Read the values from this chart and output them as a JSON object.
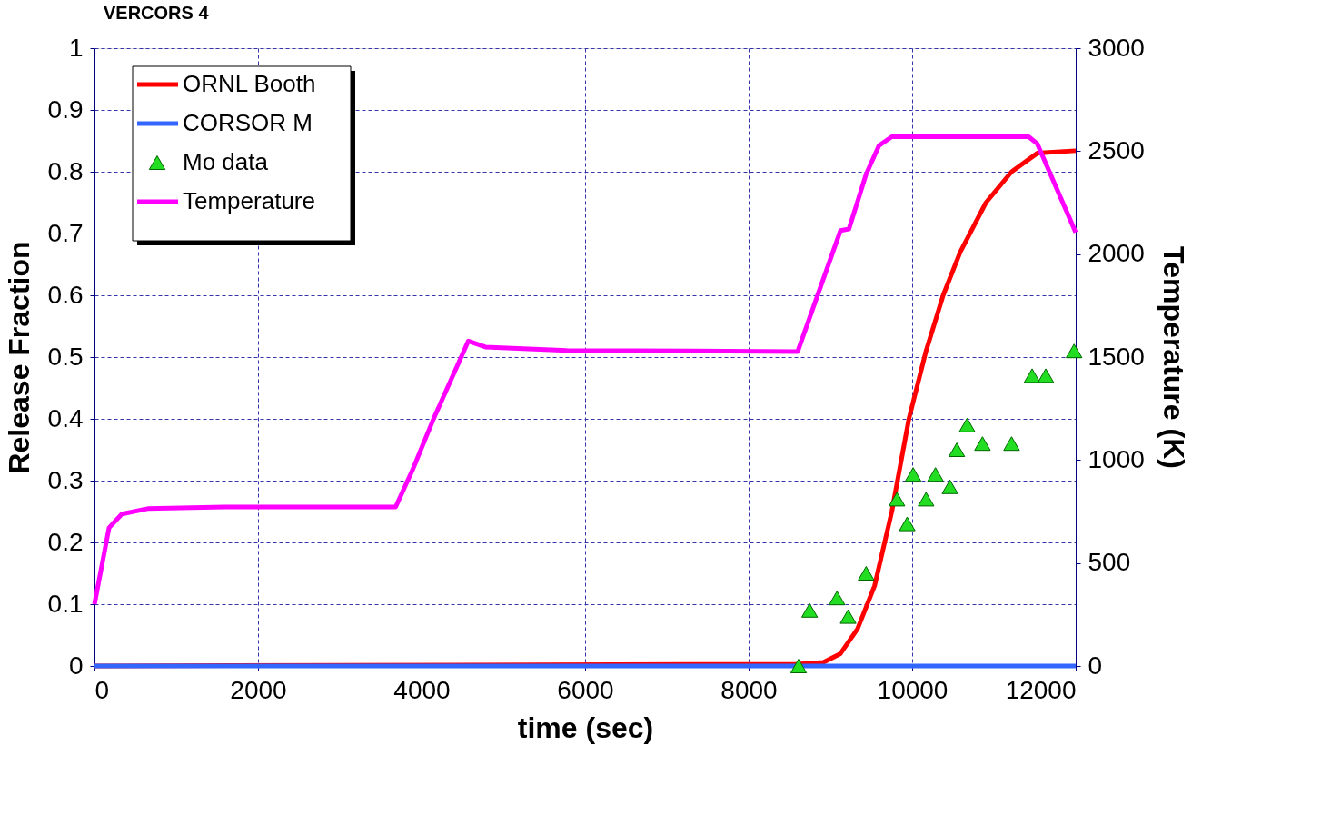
{
  "chart_data": {
    "type": "line",
    "title": "VERCORS 4",
    "xlabel": "time (sec)",
    "ylabel": "Release Fraction",
    "y2label": "Temperature (K)",
    "xlim": [
      0,
      12000
    ],
    "xticks": [
      0,
      2000,
      4000,
      6000,
      8000,
      10000,
      12000
    ],
    "ylim": [
      0,
      1
    ],
    "yticks": [
      0,
      0.1,
      0.2,
      0.3,
      0.4,
      0.5,
      0.6,
      0.7,
      0.8,
      0.9,
      1
    ],
    "y2lim": [
      0,
      3000
    ],
    "y2ticks": [
      0,
      500,
      1000,
      1500,
      2000,
      2500,
      3000
    ],
    "grid": true,
    "legend": "top left",
    "series": [
      {
        "name": "ORNL Booth",
        "color": "#ff0000",
        "x": [
          0,
          8600,
          8914,
          9123,
          9332,
          9541,
          9751,
          9960,
          10170,
          10379,
          10588,
          10902,
          11216,
          11530,
          12000
        ],
        "values": [
          0,
          0.003,
          0.006,
          0.02,
          0.06,
          0.13,
          0.25,
          0.4,
          0.51,
          0.6,
          0.67,
          0.75,
          0.8,
          0.83,
          0.834
        ]
      },
      {
        "name": "CORSOR M",
        "color": "#3366ff",
        "x": [
          0,
          12000
        ],
        "values": [
          0,
          0
        ]
      },
      {
        "name": "Mo data",
        "type": "scatter",
        "marker": "triangle",
        "color": "#22dd22",
        "x": [
          8611,
          8746,
          9081,
          9217,
          9437,
          9814,
          9939,
          10012,
          10170,
          10285,
          10462,
          10546,
          10672,
          10860,
          11216,
          11467,
          11634,
          11980
        ],
        "values": [
          0,
          0.09,
          0.11,
          0.08,
          0.15,
          0.27,
          0.23,
          0.31,
          0.27,
          0.31,
          0.29,
          0.35,
          0.39,
          0.36,
          0.36,
          0.47,
          0.47,
          0.51
        ]
      },
      {
        "name": "Temperature",
        "axis": "y2",
        "color": "#ff00ff",
        "x": [
          0,
          178,
          335,
          649,
          1590,
          3683,
          3892,
          4154,
          4572,
          4781,
          5775,
          8600,
          9123,
          9227,
          9437,
          9594,
          9751,
          11425,
          11530,
          12000
        ],
        "values": [
          300,
          671,
          738,
          764,
          772,
          772,
          954,
          1207,
          1578,
          1549,
          1532,
          1527,
          2114,
          2122,
          2388,
          2527,
          2570,
          2570,
          2536,
          2105
        ]
      }
    ]
  }
}
